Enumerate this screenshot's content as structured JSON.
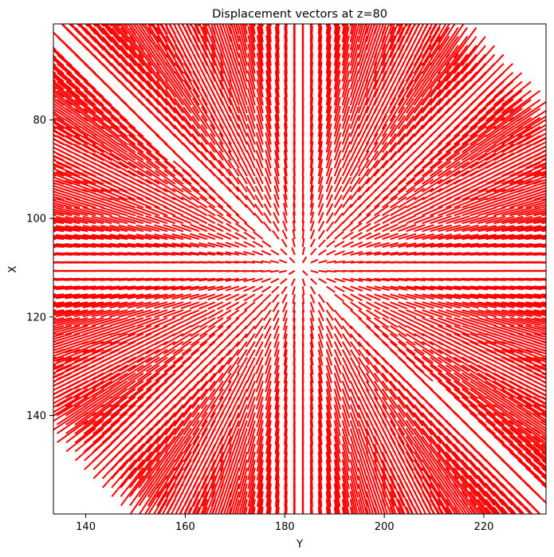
{
  "chart_data": {
    "type": "quiver",
    "title": "Displacement vectors at z=80",
    "xlabel": "Y",
    "ylabel": "X",
    "xlim": [
      133.5,
      232.5
    ],
    "ylim": [
      160,
      60.5
    ],
    "y_inverted": true,
    "xticks": [
      140,
      160,
      180,
      200,
      220
    ],
    "yticks": [
      80,
      100,
      120,
      140
    ],
    "grid": false,
    "legend": "none",
    "vector_color": "#ff0000",
    "field": {
      "description": "dense arrow field radiating outward from a center near (183, 110) along the diagonal",
      "center": [
        183,
        110
      ],
      "grid_y_range": [
        134,
        232
      ],
      "grid_x_range": [
        61,
        160
      ],
      "lobe_shape": "anti-diagonal lens"
    }
  }
}
